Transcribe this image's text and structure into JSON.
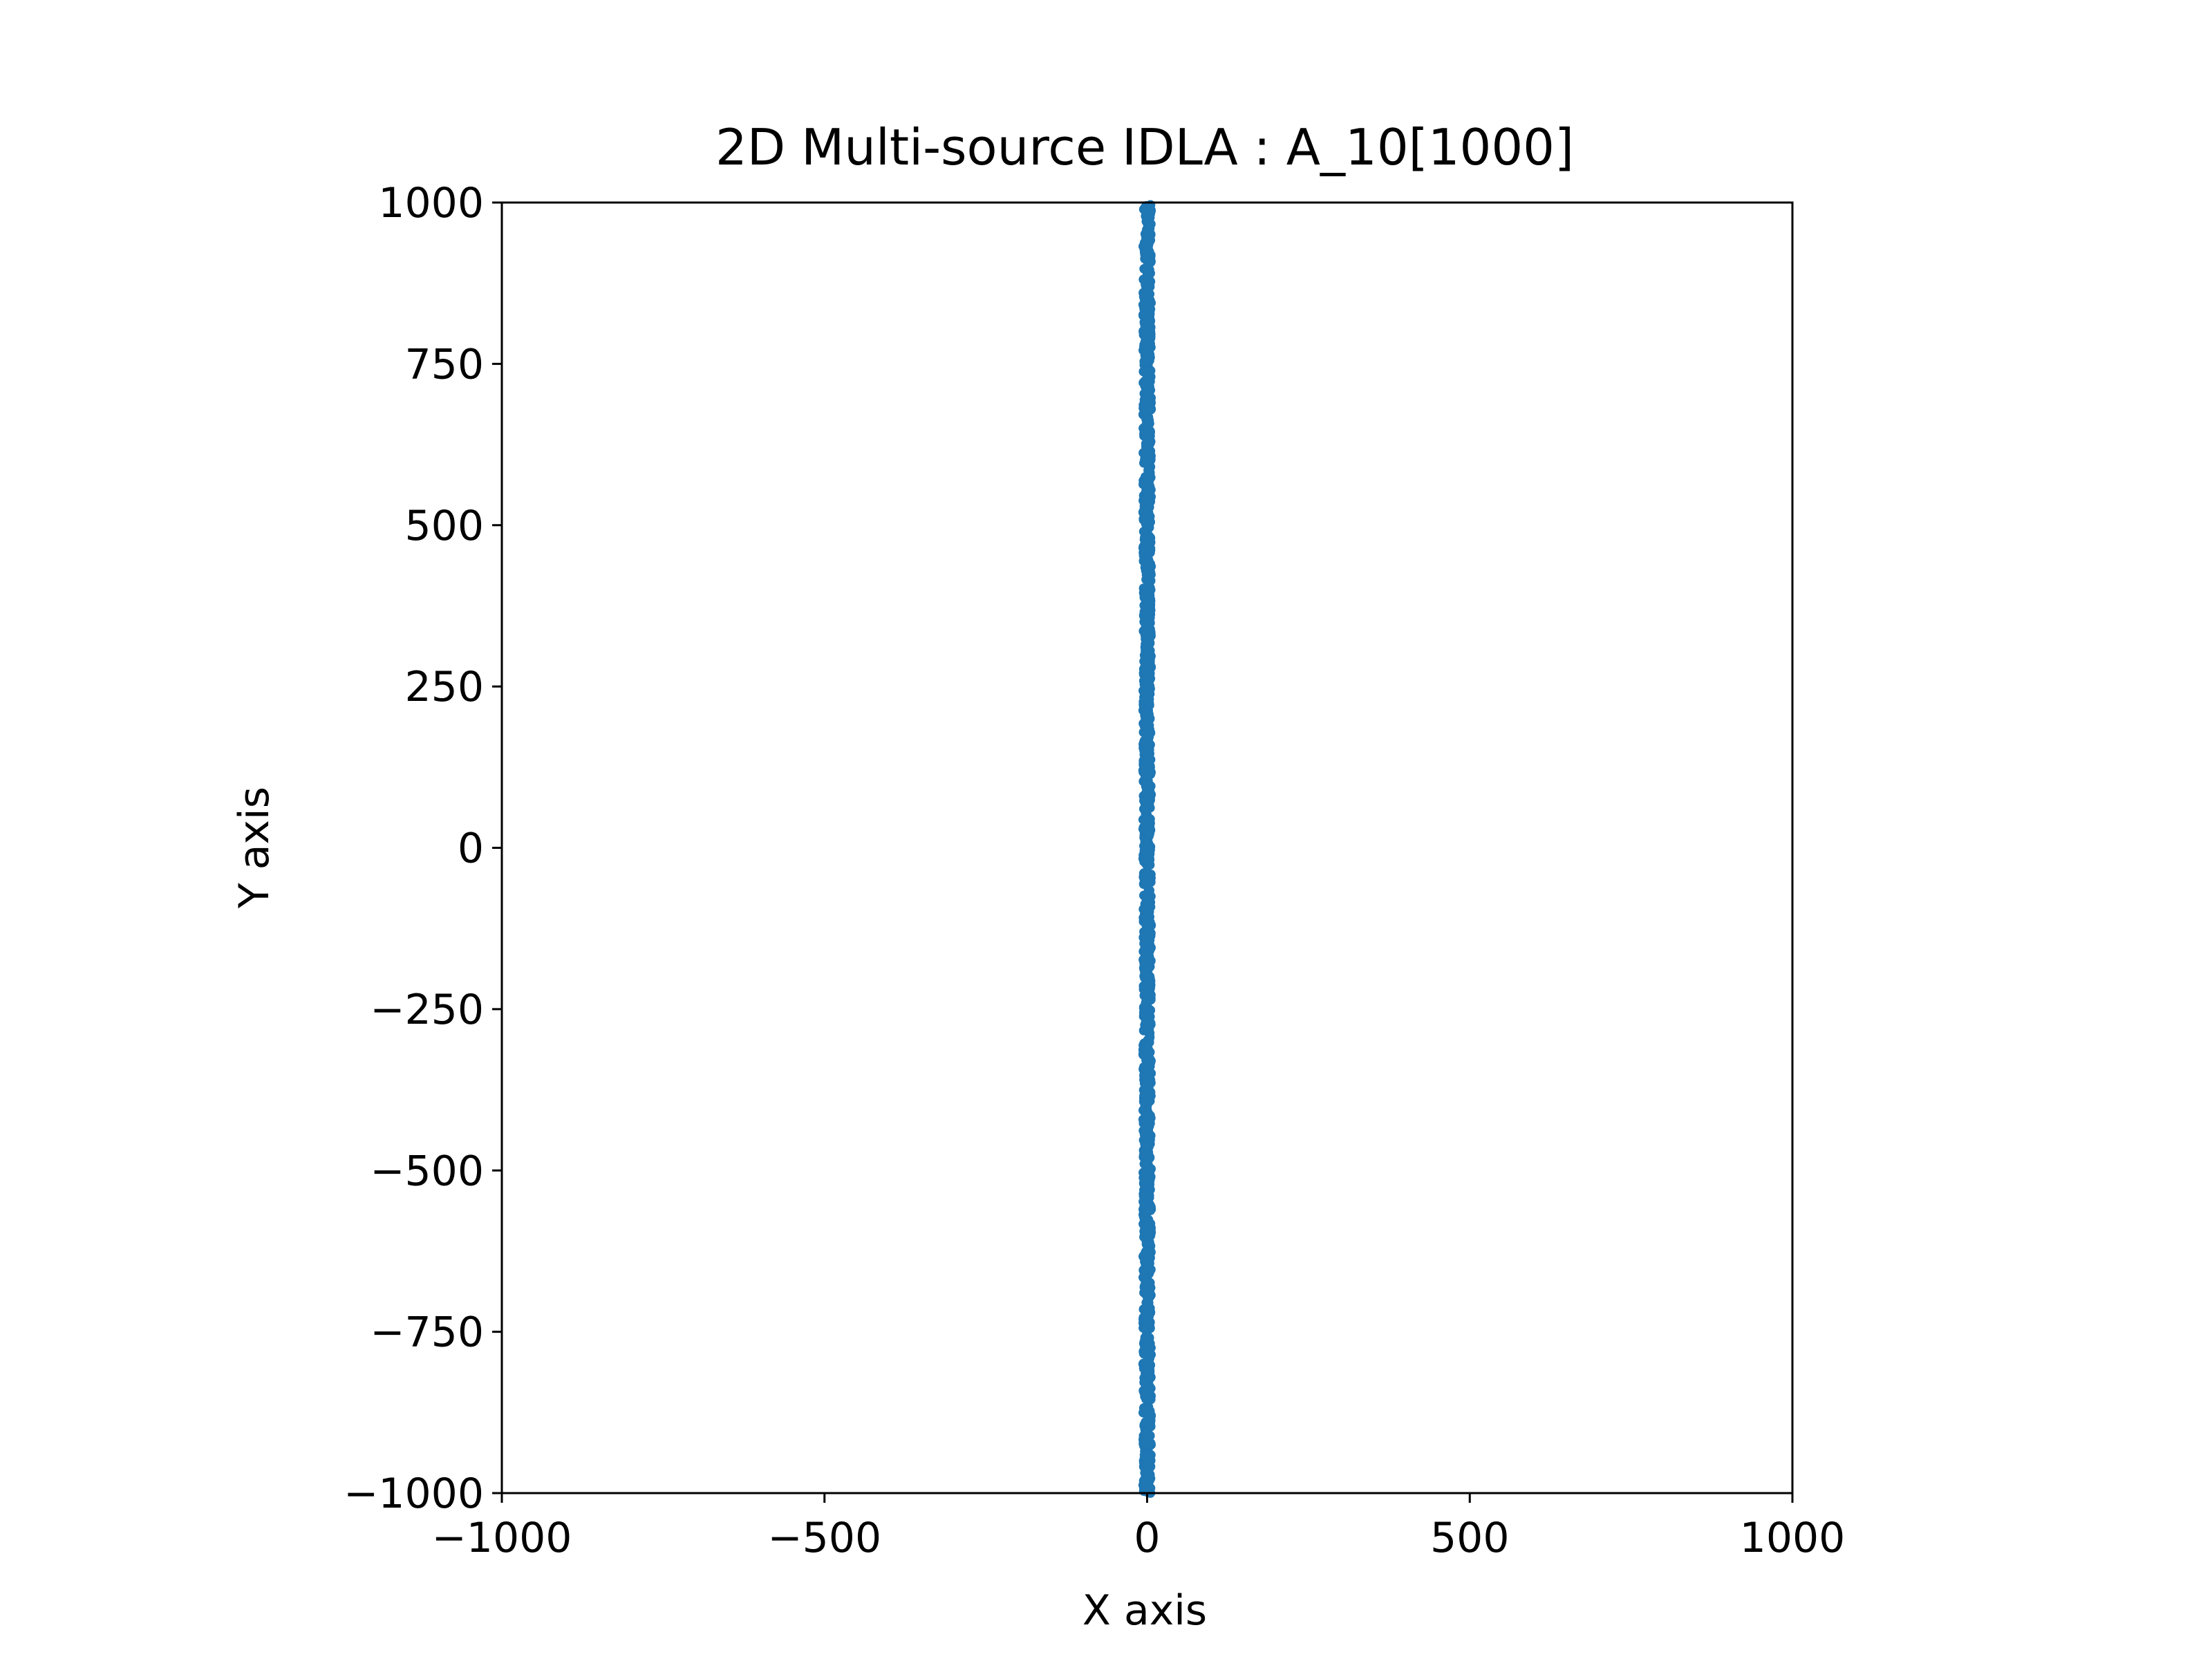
{
  "chart_data": {
    "type": "scatter",
    "title": "2D Multi-source IDLA : A_10[1000]",
    "xlabel": "X axis",
    "ylabel": "Y axis",
    "xlim": [
      -1000,
      1000
    ],
    "ylim": [
      -1000,
      1000
    ],
    "xticks": [
      -1000,
      -500,
      0,
      500,
      1000
    ],
    "yticks": [
      -1000,
      -750,
      -500,
      -250,
      0,
      250,
      500,
      750,
      1000
    ],
    "xtick_labels": [
      "−1000",
      "−500",
      "0",
      "500",
      "1000"
    ],
    "ytick_labels": [
      "−1000",
      "−750",
      "−500",
      "−250",
      "0",
      "250",
      "500",
      "750",
      "1000"
    ],
    "grid": false,
    "legend": "none",
    "series": [
      {
        "color": "#1f77b4",
        "x_range": [
          -6,
          6
        ],
        "y_range": [
          -1000,
          1000
        ],
        "points": [
          [
            -4,
            -990
          ],
          [
            3,
            -960
          ],
          [
            -2,
            -920
          ],
          [
            5,
            -880
          ],
          [
            0,
            -840
          ],
          [
            -5,
            -800
          ],
          [
            2,
            -760
          ],
          [
            4,
            -720
          ],
          [
            -3,
            -680
          ],
          [
            1,
            -640
          ],
          [
            -1,
            -600
          ],
          [
            5,
            -560
          ],
          [
            -4,
            -520
          ],
          [
            3,
            -480
          ],
          [
            0,
            -440
          ],
          [
            -2,
            -400
          ],
          [
            4,
            -360
          ],
          [
            -5,
            -320
          ],
          [
            2,
            -280
          ],
          [
            -1,
            -240
          ],
          [
            3,
            -200
          ],
          [
            -3,
            -160
          ],
          [
            5,
            -120
          ],
          [
            0,
            -80
          ],
          [
            -4,
            -40
          ],
          [
            2,
            0
          ],
          [
            -2,
            40
          ],
          [
            4,
            80
          ],
          [
            -5,
            120
          ],
          [
            1,
            160
          ],
          [
            3,
            200
          ],
          [
            -3,
            240
          ],
          [
            5,
            280
          ],
          [
            0,
            320
          ],
          [
            -4,
            360
          ],
          [
            2,
            400
          ],
          [
            -1,
            440
          ],
          [
            4,
            480
          ],
          [
            -5,
            520
          ],
          [
            3,
            560
          ],
          [
            0,
            600
          ],
          [
            -2,
            640
          ],
          [
            5,
            680
          ],
          [
            -3,
            720
          ],
          [
            1,
            760
          ],
          [
            4,
            800
          ],
          [
            -4,
            840
          ],
          [
            2,
            880
          ],
          [
            -1,
            920
          ],
          [
            3,
            960
          ],
          [
            -3,
            990
          ]
        ]
      }
    ]
  }
}
